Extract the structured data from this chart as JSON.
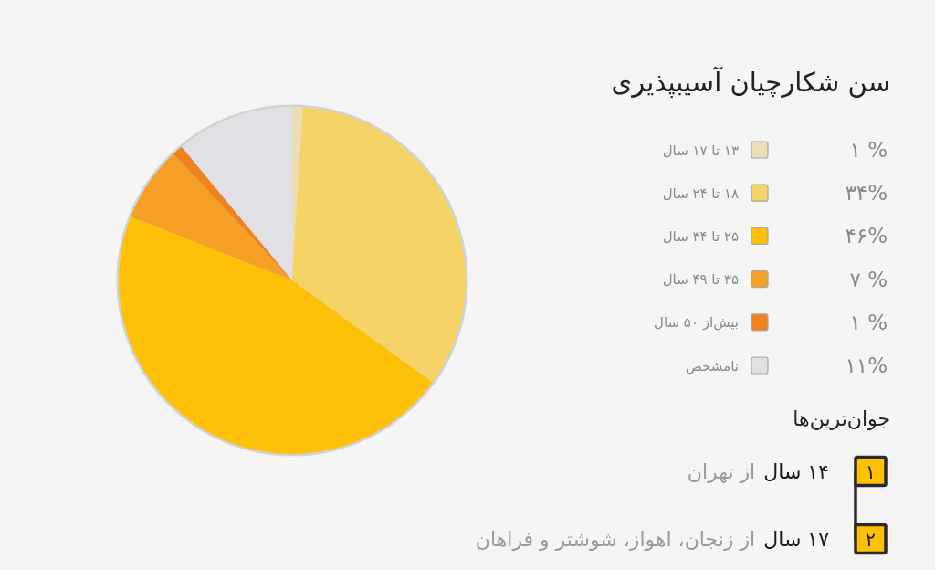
{
  "chart_data": {
    "type": "pie",
    "title": "سن شکارچیان آسیبپذیری",
    "categories": [
      "۱۳ تا ۱۷ سال",
      "۱۸ تا ۲۴ سال",
      "۲۵ تا ۳۴ سال",
      "۳۵ تا ۴۹ سال",
      "بیش‌از ۵۰ سال",
      "نامشخص"
    ],
    "values": [
      1,
      34,
      46,
      7,
      1,
      11
    ],
    "colors": [
      "#ecdfb3",
      "#f6d366",
      "#fec107",
      "#f59f27",
      "#f0821d",
      "#e1e1e5"
    ],
    "value_labels": [
      "۱ %",
      "۳۴%",
      "۴۶%",
      "۷ %",
      "۱ %",
      "۱۱%"
    ],
    "legend": "right",
    "annotations": [
      "جوان‌ترین‌ها",
      "۱",
      "۱۴ سال",
      "از تهران",
      "۲",
      "۱۷ سال",
      "از زنجان، اهواز، شوشتر و فراهان"
    ]
  }
}
